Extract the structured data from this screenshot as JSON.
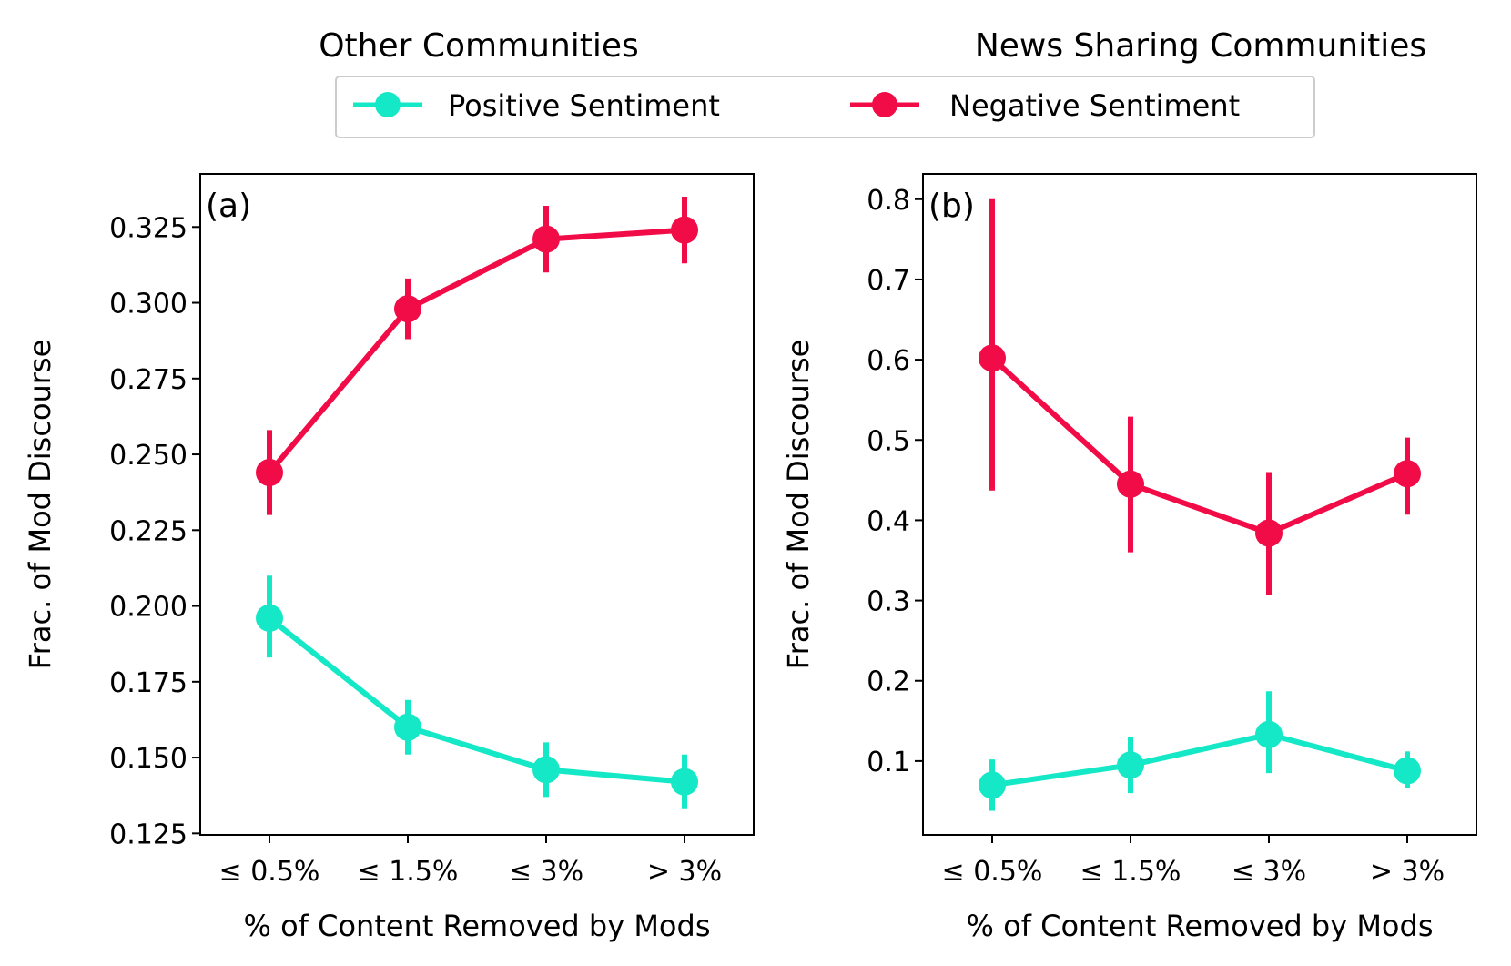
{
  "colors": {
    "positive": "#15e8c6",
    "negative": "#f20c47",
    "axis": "#000000"
  },
  "legend": {
    "placement": "top-center",
    "items": [
      {
        "label": "Positive Sentiment",
        "color": "#15e8c6",
        "marker": "circle"
      },
      {
        "label": "Negative Sentiment",
        "color": "#f20c47",
        "marker": "circle"
      }
    ]
  },
  "chart_data": [
    {
      "type": "line",
      "title": "Other Communities",
      "panel_label": "(a)",
      "xlabel": "% of Content Removed by Mods",
      "ylabel": "Frac. of Mod Discourse",
      "categories": [
        "≤ 0.5%",
        "≤ 1.5%",
        "≤ 3%",
        "> 3%"
      ],
      "ylim": [
        0.1245,
        0.3425
      ],
      "yticks": [
        0.125,
        0.15,
        0.175,
        0.2,
        0.225,
        0.25,
        0.275,
        0.3,
        0.325
      ],
      "ytick_labels": [
        "0.125",
        "0.150",
        "0.175",
        "0.200",
        "0.225",
        "0.250",
        "0.275",
        "0.300",
        "0.325"
      ],
      "grid": false,
      "series": [
        {
          "name": "Positive Sentiment",
          "color": "#15e8c6",
          "values": [
            0.196,
            0.16,
            0.146,
            0.142
          ],
          "err_low": [
            0.183,
            0.151,
            0.137,
            0.133
          ],
          "err_high": [
            0.21,
            0.169,
            0.155,
            0.151
          ]
        },
        {
          "name": "Negative Sentiment",
          "color": "#f20c47",
          "values": [
            0.244,
            0.298,
            0.321,
            0.324
          ],
          "err_low": [
            0.23,
            0.288,
            0.31,
            0.313
          ],
          "err_high": [
            0.258,
            0.308,
            0.332,
            0.335
          ]
        }
      ]
    },
    {
      "type": "line",
      "title": "News Sharing Communities",
      "panel_label": "(b)",
      "xlabel": "% of Content Removed by Mods",
      "ylabel": "Frac. of Mod Discourse",
      "categories": [
        "≤ 0.5%",
        "≤ 1.5%",
        "≤ 3%",
        "> 3%"
      ],
      "ylim": [
        0.008,
        0.8315
      ],
      "yticks": [
        0.1,
        0.2,
        0.3,
        0.4,
        0.5,
        0.6,
        0.7,
        0.8
      ],
      "ytick_labels": [
        "0.1",
        "0.2",
        "0.3",
        "0.4",
        "0.5",
        "0.6",
        "0.7",
        "0.8"
      ],
      "grid": false,
      "series": [
        {
          "name": "Positive Sentiment",
          "color": "#15e8c6",
          "values": [
            0.07,
            0.095,
            0.133,
            0.088
          ],
          "err_low": [
            0.038,
            0.06,
            0.085,
            0.066
          ],
          "err_high": [
            0.102,
            0.13,
            0.187,
            0.112
          ]
        },
        {
          "name": "Negative Sentiment",
          "color": "#f20c47",
          "values": [
            0.602,
            0.445,
            0.384,
            0.458
          ],
          "err_low": [
            0.437,
            0.36,
            0.307,
            0.407
          ],
          "err_high": [
            0.8,
            0.529,
            0.46,
            0.503
          ]
        }
      ]
    }
  ]
}
